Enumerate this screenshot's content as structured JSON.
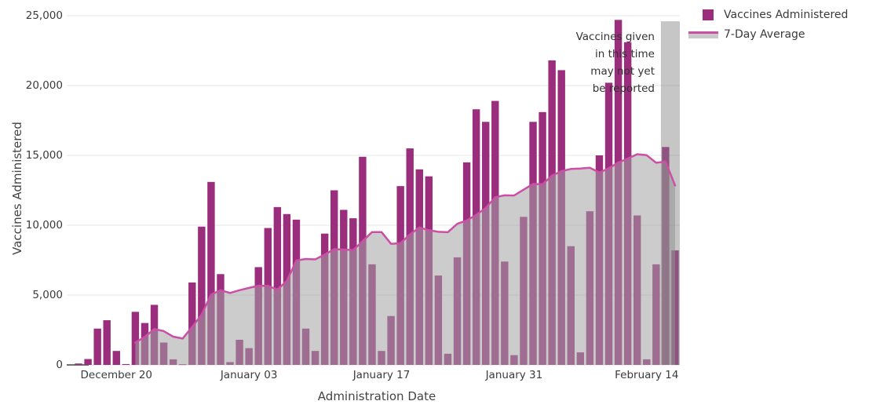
{
  "chart_data": {
    "type": "bar",
    "title": "",
    "xlabel": "Administration Date",
    "ylabel": "Vaccines Administered",
    "ylim": [
      0,
      25000
    ],
    "grid": true,
    "legend_position": "top-right",
    "categories": [
      "December 16",
      "December 17",
      "December 18",
      "December 19",
      "December 20",
      "December 21",
      "December 22",
      "December 23",
      "December 24",
      "December 25",
      "December 26",
      "December 27",
      "December 28",
      "December 29",
      "December 30",
      "December 31",
      "January 01",
      "January 02",
      "January 03",
      "January 04",
      "January 05",
      "January 06",
      "January 07",
      "January 08",
      "January 09",
      "January 10",
      "January 11",
      "January 12",
      "January 13",
      "January 14",
      "January 15",
      "January 16",
      "January 17",
      "January 18",
      "January 19",
      "January 20",
      "January 21",
      "January 22",
      "January 23",
      "January 24",
      "January 25",
      "January 26",
      "January 27",
      "January 28",
      "January 29",
      "January 30",
      "January 31",
      "February 01",
      "February 02",
      "February 03",
      "February 04",
      "February 05",
      "February 06",
      "February 07",
      "February 08",
      "February 09",
      "February 10",
      "February 11",
      "February 12",
      "February 13",
      "February 14",
      "February 15",
      "February 16",
      "February 17"
    ],
    "series": [
      {
        "name": "Vaccines Administered",
        "type": "bar",
        "color": "#9A2E7C",
        "values": [
          100,
          420,
          2600,
          3200,
          1000,
          60,
          3800,
          3000,
          4300,
          1600,
          400,
          50,
          5900,
          9900,
          13100,
          6500,
          200,
          1800,
          1200,
          7000,
          9800,
          11300,
          10800,
          10400,
          2600,
          1000,
          9400,
          12500,
          11100,
          10500,
          14900,
          7200,
          1000,
          3500,
          12800,
          15500,
          14000,
          13500,
          6400,
          800,
          7700,
          14500,
          18300,
          17400,
          18900,
          7400,
          700,
          10600,
          17400,
          18100,
          21800,
          21100,
          8500,
          900,
          11000,
          15000,
          20200,
          24700,
          23100,
          10700,
          400,
          7200,
          15600,
          8200
        ]
      },
      {
        "name": "7-Day Average",
        "type": "line",
        "color": "#CC4FA6",
        "area_fill": "rgba(163,163,163,0.55)",
        "window": 7,
        "start_index": 6,
        "values": [
          1597,
          2011,
          2566,
          2423,
          2023,
          1887,
          2721,
          3593,
          5036,
          5350,
          5150,
          5350,
          5514,
          5671,
          5657,
          5400,
          6014,
          7471,
          7586,
          7557,
          7900,
          8286,
          8257,
          8214,
          8857,
          9514,
          9514,
          8671,
          8714,
          9343,
          9843,
          9643,
          9529,
          9500,
          10100,
          10343,
          10743,
          11229,
          12000,
          12143,
          12129,
          12543,
          12957,
          12929,
          13557,
          13871,
          14029,
          14057,
          14114,
          13771,
          14071,
          14486,
          14771,
          15086,
          15014,
          14471,
          14557,
          12843
        ]
      }
    ],
    "yticks": [
      {
        "value": 0,
        "label": "0"
      },
      {
        "value": 5000,
        "label": "5,000"
      },
      {
        "value": 10000,
        "label": "10,000"
      },
      {
        "value": 15000,
        "label": "15,000"
      },
      {
        "value": 20000,
        "label": "20,000"
      },
      {
        "value": 25000,
        "label": "25,000"
      }
    ],
    "xticks": [
      {
        "index": 4,
        "label": "December 20"
      },
      {
        "index": 18,
        "label": "January 03"
      },
      {
        "index": 32,
        "label": "January 17"
      },
      {
        "index": 46,
        "label": "January 31"
      },
      {
        "index": 60,
        "label": "February 14"
      }
    ]
  },
  "annotation": {
    "text": "Vaccines given\nin this time\nmay not yet\nbe reported"
  },
  "unreported_region": {
    "start_index": 62,
    "top_value": 24600,
    "color": "rgba(128,128,128,0.45)"
  },
  "colors": {
    "background": "#ffffff",
    "gridline": "#e9e9ee",
    "zeroline": "#444444",
    "bar": "#9A2E7C",
    "average_line": "#CC4FA6",
    "average_fill": "rgba(163,163,163,0.55)",
    "text": "#3b3b3b"
  }
}
